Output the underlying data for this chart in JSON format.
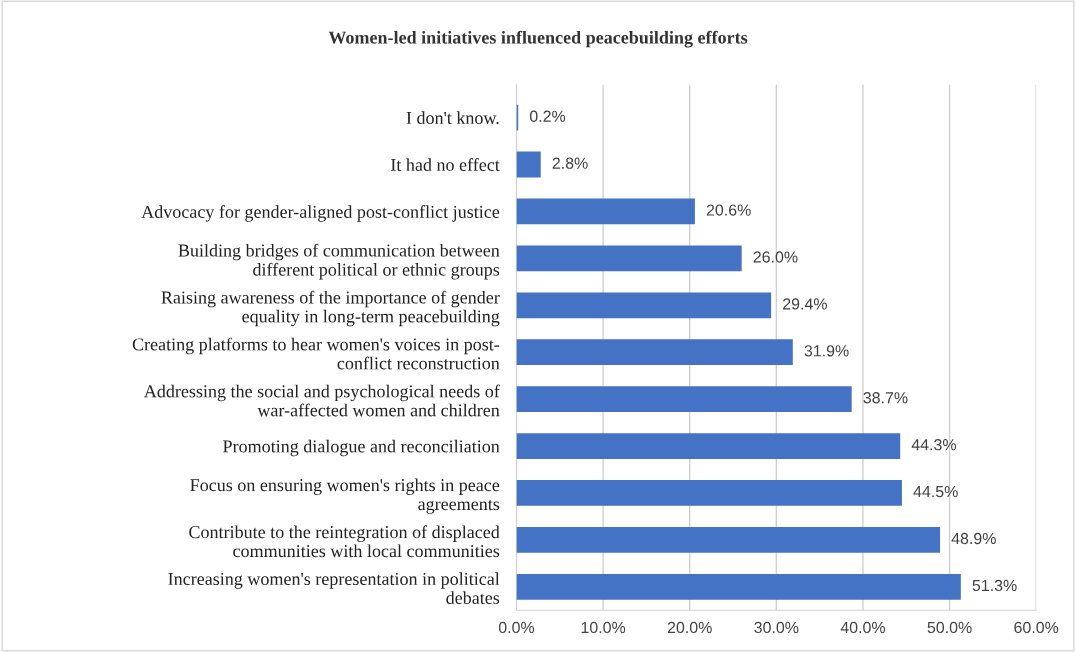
{
  "chart_data": {
    "type": "bar",
    "orientation": "horizontal",
    "title": "Women-led initiatives influenced peacebuilding efforts",
    "categories": [
      "I don't know.",
      "It had no effect",
      "Advocacy for gender-aligned post-conflict justice",
      "Building bridges of communication between\ndifferent political or ethnic groups",
      "Raising awareness of the importance of gender\nequality in long-term peacebuilding",
      "Creating platforms to hear women's voices in post-\nconflict reconstruction",
      "Addressing the social and psychological needs of\nwar-affected women and children",
      "Promoting dialogue and reconciliation",
      "Focus on ensuring women's rights in peace\nagreements",
      "Contribute to the reintegration of displaced\ncommunities with local communities",
      "Increasing women's representation in political\ndebates"
    ],
    "values": [
      0.2,
      2.8,
      20.6,
      26.0,
      29.4,
      31.9,
      38.7,
      44.3,
      44.5,
      48.9,
      51.3
    ],
    "value_labels": [
      "0.2%",
      "2.8%",
      "20.6%",
      "26.0%",
      "29.4%",
      "31.9%",
      "38.7%",
      "44.3%",
      "44.5%",
      "48.9%",
      "51.3%"
    ],
    "color": "#4472c4",
    "xlim": [
      0,
      60
    ],
    "xticks": [
      {
        "value": 0,
        "label": "0.0%"
      },
      {
        "value": 10,
        "label": "10.0%"
      },
      {
        "value": 20,
        "label": "20.0%"
      },
      {
        "value": 30,
        "label": "30.0%"
      },
      {
        "value": 40,
        "label": "40.0%"
      },
      {
        "value": 50,
        "label": "50.0%"
      },
      {
        "value": 60,
        "label": "60.0%"
      }
    ],
    "grid": "x",
    "legend": false
  }
}
